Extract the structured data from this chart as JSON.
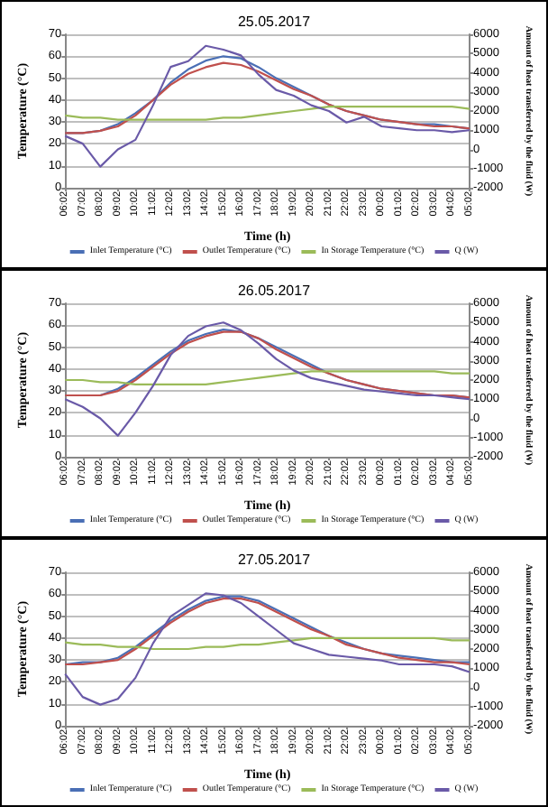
{
  "chart_data": [
    {
      "type": "line",
      "title": "25.05.2017",
      "xlabel": "Time (h)",
      "ylabel": "Temperature (°C)",
      "y2label": "Amount of heat transferred by the fluid (W)",
      "categories": [
        "06:02",
        "07:02",
        "08:02",
        "09:02",
        "10:02",
        "11:02",
        "12:02",
        "13:02",
        "14:02",
        "15:02",
        "16:02",
        "17:02",
        "18:02",
        "19:02",
        "20:02",
        "21:02",
        "22:02",
        "23:02",
        "00:02",
        "01:02",
        "02:02",
        "03:02",
        "04:02",
        "05:02"
      ],
      "series": [
        {
          "name": "Inlet Temperature (°C)",
          "color": "#4a6fb5",
          "values": [
            25,
            25,
            26,
            29,
            34,
            40,
            48,
            54,
            58,
            60,
            59,
            55,
            50,
            46,
            42,
            38,
            35,
            33,
            31,
            30,
            29,
            29,
            28,
            27
          ]
        },
        {
          "name": "Outlet Temperature (°C)",
          "color": "#c0504d",
          "values": [
            25,
            25,
            26,
            28,
            33,
            40,
            47,
            52,
            55,
            57,
            56,
            53,
            49,
            45,
            42,
            38,
            35,
            33,
            31,
            30,
            29,
            28,
            28,
            27
          ]
        },
        {
          "name": "In Storage Temperature (°C)",
          "color": "#9bbb59",
          "values": [
            33,
            32,
            32,
            31,
            31,
            31,
            31,
            31,
            31,
            32,
            32,
            33,
            34,
            35,
            36,
            37,
            37,
            37,
            37,
            37,
            37,
            37,
            37,
            36
          ]
        },
        {
          "name": "Q (W)",
          "color": "#6a5aa8",
          "axis": "y2",
          "values": [
            700,
            300,
            -900,
            0,
            500,
            2300,
            4300,
            4600,
            5400,
            5200,
            4900,
            3900,
            3100,
            2800,
            2300,
            2000,
            1400,
            1700,
            1200,
            1100,
            1000,
            1000,
            900,
            1000
          ]
        }
      ],
      "ylim": [
        0,
        70
      ],
      "yticks": [
        0,
        10,
        20,
        30,
        40,
        50,
        60,
        70
      ],
      "y2lim": [
        -2000,
        6000
      ],
      "y2ticks": [
        -2000,
        -1000,
        0,
        1000,
        2000,
        3000,
        4000,
        5000,
        6000
      ],
      "grid": "y",
      "legend": "bottom",
      "marker": "none",
      "line_style": "solid"
    },
    {
      "type": "line",
      "title": "26.05.2017",
      "xlabel": "Time (h)",
      "ylabel": "Temperature (°C)",
      "y2label": "Amount of heat transferred by the fluid (W)",
      "categories": [
        "06:02",
        "07:02",
        "08:02",
        "09:02",
        "10:02",
        "11:02",
        "12:02",
        "13:02",
        "14:02",
        "15:02",
        "16:02",
        "17:02",
        "18:02",
        "19:02",
        "20:02",
        "21:02",
        "22:02",
        "23:02",
        "00:02",
        "01:02",
        "02:02",
        "03:02",
        "04:02",
        "05:02"
      ],
      "series": [
        {
          "name": "Inlet Temperature (°C)",
          "color": "#4a6fb5",
          "values": [
            28,
            28,
            28,
            31,
            36,
            42,
            48,
            53,
            56,
            58,
            57,
            54,
            50,
            46,
            42,
            38,
            35,
            33,
            31,
            30,
            29,
            28,
            28,
            27
          ]
        },
        {
          "name": "Outlet Temperature (°C)",
          "color": "#c0504d",
          "values": [
            28,
            28,
            28,
            30,
            35,
            41,
            47,
            52,
            55,
            57,
            57,
            54,
            49,
            45,
            41,
            38,
            35,
            33,
            31,
            30,
            29,
            28,
            28,
            27
          ]
        },
        {
          "name": "In Storage Temperature (°C)",
          "color": "#9bbb59",
          "values": [
            35,
            35,
            34,
            34,
            33,
            33,
            33,
            33,
            33,
            34,
            35,
            36,
            37,
            38,
            39,
            39,
            39,
            39,
            39,
            39,
            39,
            39,
            38,
            38
          ]
        },
        {
          "name": "Q (W)",
          "color": "#6a5aa8",
          "axis": "y2",
          "values": [
            1000,
            600,
            0,
            -900,
            300,
            1700,
            3300,
            4300,
            4800,
            5000,
            4600,
            3900,
            3100,
            2500,
            2100,
            1900,
            1700,
            1500,
            1400,
            1300,
            1200,
            1200,
            1100,
            1000
          ]
        }
      ],
      "ylim": [
        0,
        70
      ],
      "yticks": [
        0,
        10,
        20,
        30,
        40,
        50,
        60,
        70
      ],
      "y2lim": [
        -2000,
        6000
      ],
      "y2ticks": [
        -2000,
        -1000,
        0,
        1000,
        2000,
        3000,
        4000,
        5000,
        6000
      ],
      "grid": "y",
      "legend": "bottom",
      "marker": "none",
      "line_style": "solid"
    },
    {
      "type": "line",
      "title": "27.05.2017",
      "xlabel": "Time (h)",
      "ylabel": "Temperature (°C)",
      "y2label": "Amount of heat transferred by the fluid (W)",
      "categories": [
        "06:02",
        "07:02",
        "08:02",
        "09:02",
        "10:02",
        "11:02",
        "12:02",
        "13:02",
        "14:02",
        "15:02",
        "16:02",
        "17:02",
        "18:02",
        "19:02",
        "20:02",
        "21:02",
        "22:02",
        "23:02",
        "00:02",
        "01:02",
        "02:02",
        "03:02",
        "04:02",
        "05:02"
      ],
      "series": [
        {
          "name": "Inlet Temperature (°C)",
          "color": "#4a6fb5",
          "values": [
            28,
            29,
            29,
            31,
            36,
            42,
            48,
            53,
            57,
            59,
            59,
            57,
            53,
            49,
            45,
            41,
            38,
            35,
            33,
            32,
            31,
            30,
            29,
            29
          ]
        },
        {
          "name": "Outlet Temperature (°C)",
          "color": "#c0504d",
          "values": [
            28,
            28,
            29,
            30,
            35,
            41,
            47,
            52,
            56,
            58,
            58,
            56,
            52,
            48,
            44,
            41,
            37,
            35,
            33,
            31,
            30,
            29,
            29,
            28
          ]
        },
        {
          "name": "In Storage Temperature (°C)",
          "color": "#9bbb59",
          "values": [
            38,
            37,
            37,
            36,
            36,
            35,
            35,
            35,
            36,
            36,
            37,
            37,
            38,
            39,
            40,
            40,
            40,
            40,
            40,
            40,
            40,
            40,
            39,
            39
          ]
        },
        {
          "name": "Q (W)",
          "color": "#6a5aa8",
          "axis": "y2",
          "values": [
            700,
            -500,
            -900,
            -600,
            500,
            2300,
            3700,
            4300,
            4900,
            4800,
            4400,
            3700,
            3000,
            2300,
            2000,
            1700,
            1600,
            1500,
            1400,
            1200,
            1200,
            1200,
            1100,
            800
          ]
        }
      ],
      "ylim": [
        0,
        70
      ],
      "yticks": [
        0,
        10,
        20,
        30,
        40,
        50,
        60,
        70
      ],
      "y2lim": [
        -2000,
        6000
      ],
      "y2ticks": [
        -2000,
        -1000,
        0,
        1000,
        2000,
        3000,
        4000,
        5000,
        6000
      ],
      "grid": "y",
      "legend": "bottom",
      "marker": "none",
      "line_style": "solid"
    }
  ]
}
